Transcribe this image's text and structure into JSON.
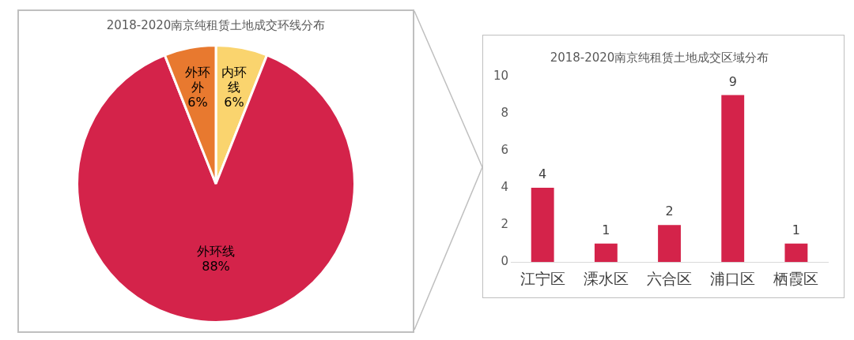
{
  "chart_data": [
    {
      "type": "pie",
      "title": "2018-2020南京纯租赁土地成交环线分布",
      "categories": [
        "内环线",
        "外环线",
        "外环外"
      ],
      "values": [
        6,
        88,
        6
      ],
      "colors": [
        "#fad46e",
        "#d4234a",
        "#e8792f"
      ],
      "value_labels": [
        "6%",
        "88%",
        "6%"
      ],
      "legend": false
    },
    {
      "type": "bar",
      "title": "2018-2020南京纯租赁土地成交区域分布",
      "categories": [
        "江宁区",
        "溧水区",
        "六合区",
        "浦口区",
        "栖霞区"
      ],
      "values": [
        4,
        1,
        2,
        9,
        1
      ],
      "color": "#d4234a",
      "ylim": [
        0,
        10
      ],
      "yticks": [
        0,
        2,
        4,
        6,
        8,
        10
      ],
      "grid": false,
      "data_labels": true,
      "legend": false
    }
  ]
}
